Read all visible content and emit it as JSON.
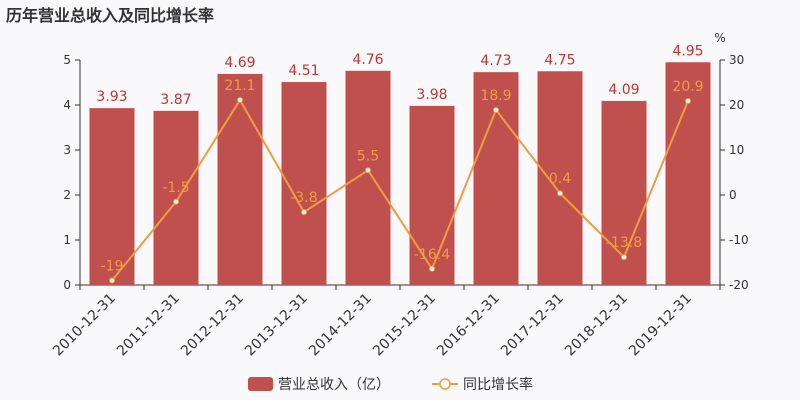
{
  "chart_data": {
    "type": "bar",
    "title": "历年营业总收入及同比增长率",
    "categories": [
      "2010-12-31",
      "2011-12-31",
      "2012-12-31",
      "2013-12-31",
      "2014-12-31",
      "2015-12-31",
      "2016-12-31",
      "2017-12-31",
      "2018-12-31",
      "2019-12-31"
    ],
    "series": [
      {
        "name": "营业总收入（亿）",
        "type": "bar",
        "axis": "left",
        "color": "#c0504d",
        "values": [
          3.93,
          3.87,
          4.69,
          4.51,
          4.76,
          3.98,
          4.73,
          4.75,
          4.09,
          4.95
        ],
        "labels": [
          "3.93",
          "3.87",
          "4.69",
          "4.51",
          "4.76",
          "3.98",
          "4.73",
          "4.75",
          "4.09",
          "4.95"
        ]
      },
      {
        "name": "同比增长率",
        "type": "line",
        "axis": "right",
        "color": "#f19b42",
        "values": [
          -19,
          -1.5,
          21.1,
          -3.8,
          5.5,
          -16.4,
          18.9,
          0.4,
          -13.8,
          20.9
        ],
        "labels": [
          "-19",
          "-1.5",
          "21.1",
          "-3.8",
          "5.5",
          "-16.4",
          "18.9",
          "0.4",
          "-13.8",
          "20.9"
        ]
      }
    ],
    "y_left": {
      "min": 0,
      "max": 5,
      "ticks": [
        "0",
        "1",
        "2",
        "3",
        "4",
        "5"
      ]
    },
    "y_right": {
      "min": -20,
      "max": 30,
      "ticks": [
        "-20",
        "-10",
        "0",
        "10",
        "20",
        "30"
      ],
      "unit": "%"
    },
    "grid": false,
    "legend": "bottom-center"
  }
}
